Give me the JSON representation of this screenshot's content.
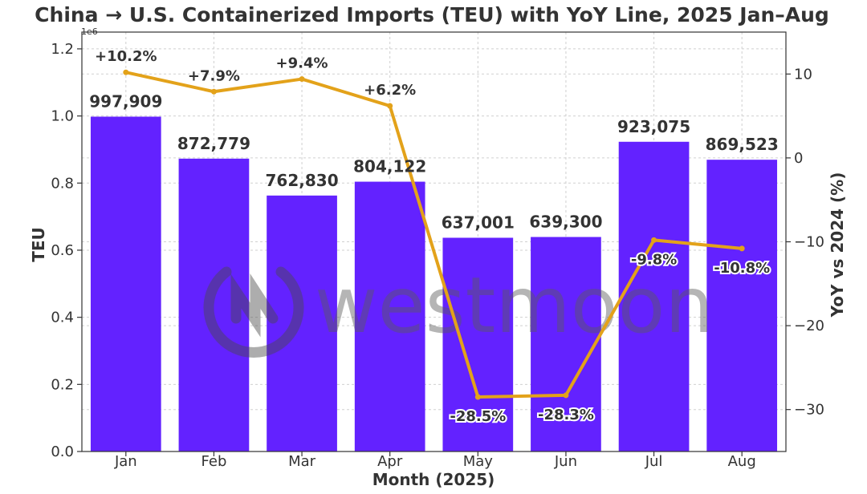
{
  "chart_data": {
    "type": "bar",
    "title": "China → U.S. Containerized Imports (TEU) with YoY Line, 2025 Jan–Aug",
    "xlabel": "Month (2025)",
    "ylabel": "TEU",
    "y_exponent_label": "1e6",
    "ylim": [
      0,
      1250000
    ],
    "yticks": [
      0,
      200000,
      400000,
      600000,
      800000,
      1000000,
      1200000
    ],
    "ytick_labels": [
      "0.0",
      "0.2",
      "0.4",
      "0.6",
      "0.8",
      "1.0",
      "1.2"
    ],
    "categories": [
      "Jan",
      "Feb",
      "Mar",
      "Apr",
      "May",
      "Jun",
      "Jul",
      "Aug"
    ],
    "series": [
      {
        "type": "bar",
        "values": [
          997909,
          872779,
          762830,
          804122,
          637001,
          639300,
          923075,
          869523
        ],
        "labels": [
          "997,909",
          "872,779",
          "762,830",
          "804,122",
          "637,001",
          "639,300",
          "923,075",
          "869,523"
        ],
        "color": "#6322ff"
      },
      {
        "type": "line",
        "axis": "right",
        "values": [
          10.2,
          7.9,
          9.4,
          6.2,
          -28.5,
          -28.3,
          -9.8,
          -10.8
        ],
        "labels": [
          "+10.2%",
          "+7.9%",
          "+9.4%",
          "+6.2%",
          "-28.5%",
          "-28.3%",
          "-9.8%",
          "-10.8%"
        ],
        "color": "#e3a21a"
      }
    ],
    "y2label": "YoY vs 2024 (%)",
    "y2lim": [
      -35,
      15
    ],
    "y2ticks": [
      10,
      0,
      -10,
      -20,
      -30
    ],
    "y2tick_labels": [
      "10",
      "0",
      "−10",
      "−20",
      "−30"
    ],
    "grid": true,
    "legend": "none"
  },
  "watermark": {
    "text": "westmoon"
  }
}
